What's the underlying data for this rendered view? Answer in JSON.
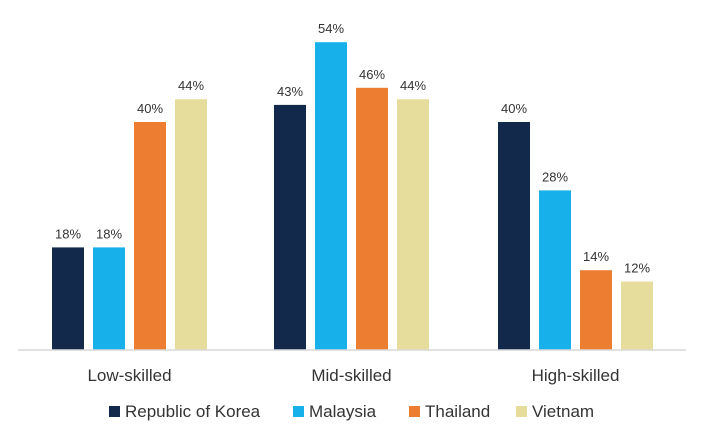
{
  "chart_data": {
    "type": "bar",
    "categories": [
      "Low-skilled",
      "Mid-skilled",
      "High-skilled"
    ],
    "series": [
      {
        "name": "Republic of Korea",
        "color": "#13294b",
        "values": [
          18,
          43,
          40
        ]
      },
      {
        "name": "Malaysia",
        "color": "#17b0ea",
        "values": [
          18,
          54,
          28
        ]
      },
      {
        "name": "Thailand",
        "color": "#ed7d31",
        "values": [
          40,
          46,
          14
        ]
      },
      {
        "name": "Vietnam",
        "color": "#e6dc9c",
        "values": [
          44,
          44,
          12
        ]
      }
    ],
    "value_suffix": "%",
    "ylim": [
      0,
      60
    ],
    "grid": false,
    "legend": "bottom",
    "axis_color": "#d9d9d9"
  }
}
